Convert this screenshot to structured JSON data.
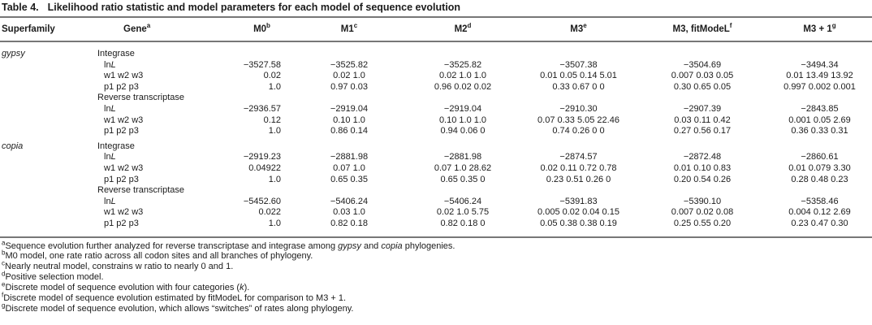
{
  "colors": {
    "background": "#ffffff",
    "text": "#1b1b1b",
    "rule": "#777777"
  },
  "title": {
    "label": "Table 4.",
    "text": "Likelihood ratio statistic and model parameters for each model of sequence evolution"
  },
  "header": {
    "superfamily": "Superfamily",
    "gene": {
      "label": "Gene",
      "sup": "a"
    },
    "m0": {
      "label": "M0",
      "sup": "b"
    },
    "m1": {
      "label": "M1",
      "sup": "c"
    },
    "m2": {
      "label": "M2",
      "sup": "d"
    },
    "m3": {
      "label": "M3",
      "sup": "e"
    },
    "fit": {
      "label": "M3, fitModeL",
      "sup": "f"
    },
    "m31": {
      "label": "M3 + 1",
      "sup": "g"
    }
  },
  "labels": {
    "lnl_prefix": "ln",
    "lnl_italic": "L",
    "w": "w1 w2 w3",
    "p": "p1 p2 p3"
  },
  "sections": [
    {
      "superfamily": "gypsy",
      "genes": [
        {
          "name": "Integrase",
          "lnl": [
            "−3527.58",
            "−3525.82",
            "−3525.82",
            "−3507.38",
            "−3504.69",
            "−3494.34"
          ],
          "w": [
            "0.02",
            "0.02 1.0",
            "0.02 1.0 1.0",
            "0.01 0.05 0.14 5.01",
            "0.007 0.03 0.05",
            "0.01 13.49 13.92"
          ],
          "p": [
            "1.0",
            "0.97 0.03",
            "0.96 0.02 0.02",
            "0.33 0.67 0 0",
            "0.30 0.65 0.05",
            "0.997 0.002 0.001"
          ]
        },
        {
          "name": "Reverse transcriptase",
          "lnl": [
            "−2936.57",
            "−2919.04",
            "−2919.04",
            "−2910.30",
            "−2907.39",
            "−2843.85"
          ],
          "w": [
            "0.12",
            "0.10 1.0",
            "0.10 1.0 1.0",
            "0.07 0.33 5.05 22.46",
            "0.03 0.11 0.42",
            "0.001 0.05 2.69"
          ],
          "p": [
            "1.0",
            "0.86 0.14",
            "0.94 0.06 0",
            "0.74 0.26 0 0",
            "0.27 0.56 0.17",
            "0.36 0.33 0.31"
          ]
        }
      ]
    },
    {
      "superfamily": "copia",
      "genes": [
        {
          "name": "Integrase",
          "lnl": [
            "−2919.23",
            "−2881.98",
            "−2881.98",
            "−2874.57",
            "−2872.48",
            "−2860.61"
          ],
          "w": [
            "0.04922",
            "0.07 1.0",
            "0.07 1.0 28.62",
            "0.02 0.11 0.72 0.78",
            "0.01 0.10 0.83",
            "0.01 0.079 3.30"
          ],
          "p": [
            "1.0",
            "0.65 0.35",
            "0.65 0.35 0",
            "0.23 0.51 0.26 0",
            "0.20 0.54 0.26",
            "0.28 0.48 0.23"
          ]
        },
        {
          "name": "Reverse transcriptase",
          "lnl": [
            "−5452.60",
            "−5406.24",
            "−5406.24",
            "−5391.83",
            "−5390.10",
            "−5358.46"
          ],
          "w": [
            "0.022",
            "0.03 1.0",
            "0.02 1.0 5.75",
            "0.005 0.02 0.04 0.15",
            "0.007 0.02 0.08",
            "0.004 0.12 2.69"
          ],
          "p": [
            "1.0",
            "0.82 0.18",
            "0.82 0.18 0",
            "0.05 0.38 0.38 0.19",
            "0.25 0.55 0.20",
            "0.23 0.47 0.30"
          ]
        }
      ]
    }
  ],
  "footnotes": [
    {
      "sup": "a",
      "parts": [
        {
          "t": "Sequence evolution further analyzed for reverse transcriptase and integrase among "
        },
        {
          "t": "gypsy"
        },
        {
          "t": " and "
        },
        {
          "t": "copia"
        },
        {
          "t": " phylogenies."
        }
      ]
    },
    {
      "sup": "b",
      "parts": [
        {
          "t": "M0 model, one rate ratio across all codon sites and all branches of phylogeny."
        }
      ]
    },
    {
      "sup": "c",
      "parts": [
        {
          "t": "Nearly neutral model, constrains w ratio to nearly 0 and 1."
        }
      ]
    },
    {
      "sup": "d",
      "parts": [
        {
          "t": "Positive selection model."
        }
      ]
    },
    {
      "sup": "e",
      "parts": [
        {
          "t": "Discrete model of sequence evolution with four categories ("
        },
        {
          "t": "k"
        },
        {
          "t": ")."
        }
      ]
    },
    {
      "sup": "f",
      "parts": [
        {
          "t": "Discrete model of sequence evolution estimated by fitModeL for comparison to M3 + 1."
        }
      ]
    },
    {
      "sup": "g",
      "parts": [
        {
          "t": "Discrete model of sequence evolution, which allows “switches” of rates along phylogeny."
        }
      ]
    }
  ]
}
